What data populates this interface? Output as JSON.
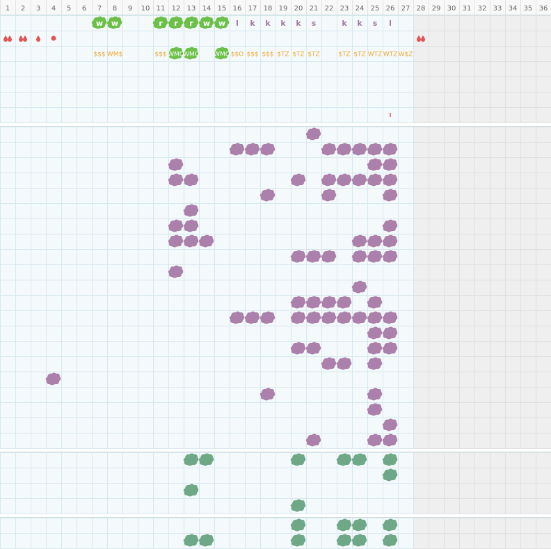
{
  "header": {
    "columns": [
      1,
      2,
      3,
      4,
      5,
      6,
      7,
      8,
      9,
      10,
      11,
      12,
      13,
      14,
      15,
      16,
      17,
      18,
      19,
      20,
      21,
      22,
      23,
      24,
      25,
      26,
      27,
      28,
      29,
      30,
      31,
      32,
      33,
      34,
      35,
      36
    ]
  },
  "top": {
    "row1": [
      null,
      null,
      null,
      null,
      null,
      null,
      "w",
      "w",
      null,
      null,
      "r",
      "r",
      "r",
      "w",
      "w",
      "l",
      "k",
      "k",
      "k",
      "k",
      "s",
      null,
      "k",
      "k",
      "s",
      "l",
      null,
      null,
      null,
      null,
      null,
      null,
      null,
      null,
      null,
      null
    ],
    "row3": [
      null,
      null,
      null,
      null,
      null,
      null,
      "$$$",
      "WM$",
      null,
      null,
      "$$$",
      "WMO",
      "WMO",
      null,
      "WMO",
      "$$O",
      "$$$",
      "$$$",
      "$TZ",
      "$TZ",
      "$TZ",
      null,
      "$TZ",
      "$TZ",
      "WTZ",
      "WTZ",
      "W$Z",
      null,
      null,
      null,
      null,
      null,
      null,
      null,
      null,
      null
    ]
  }
}
